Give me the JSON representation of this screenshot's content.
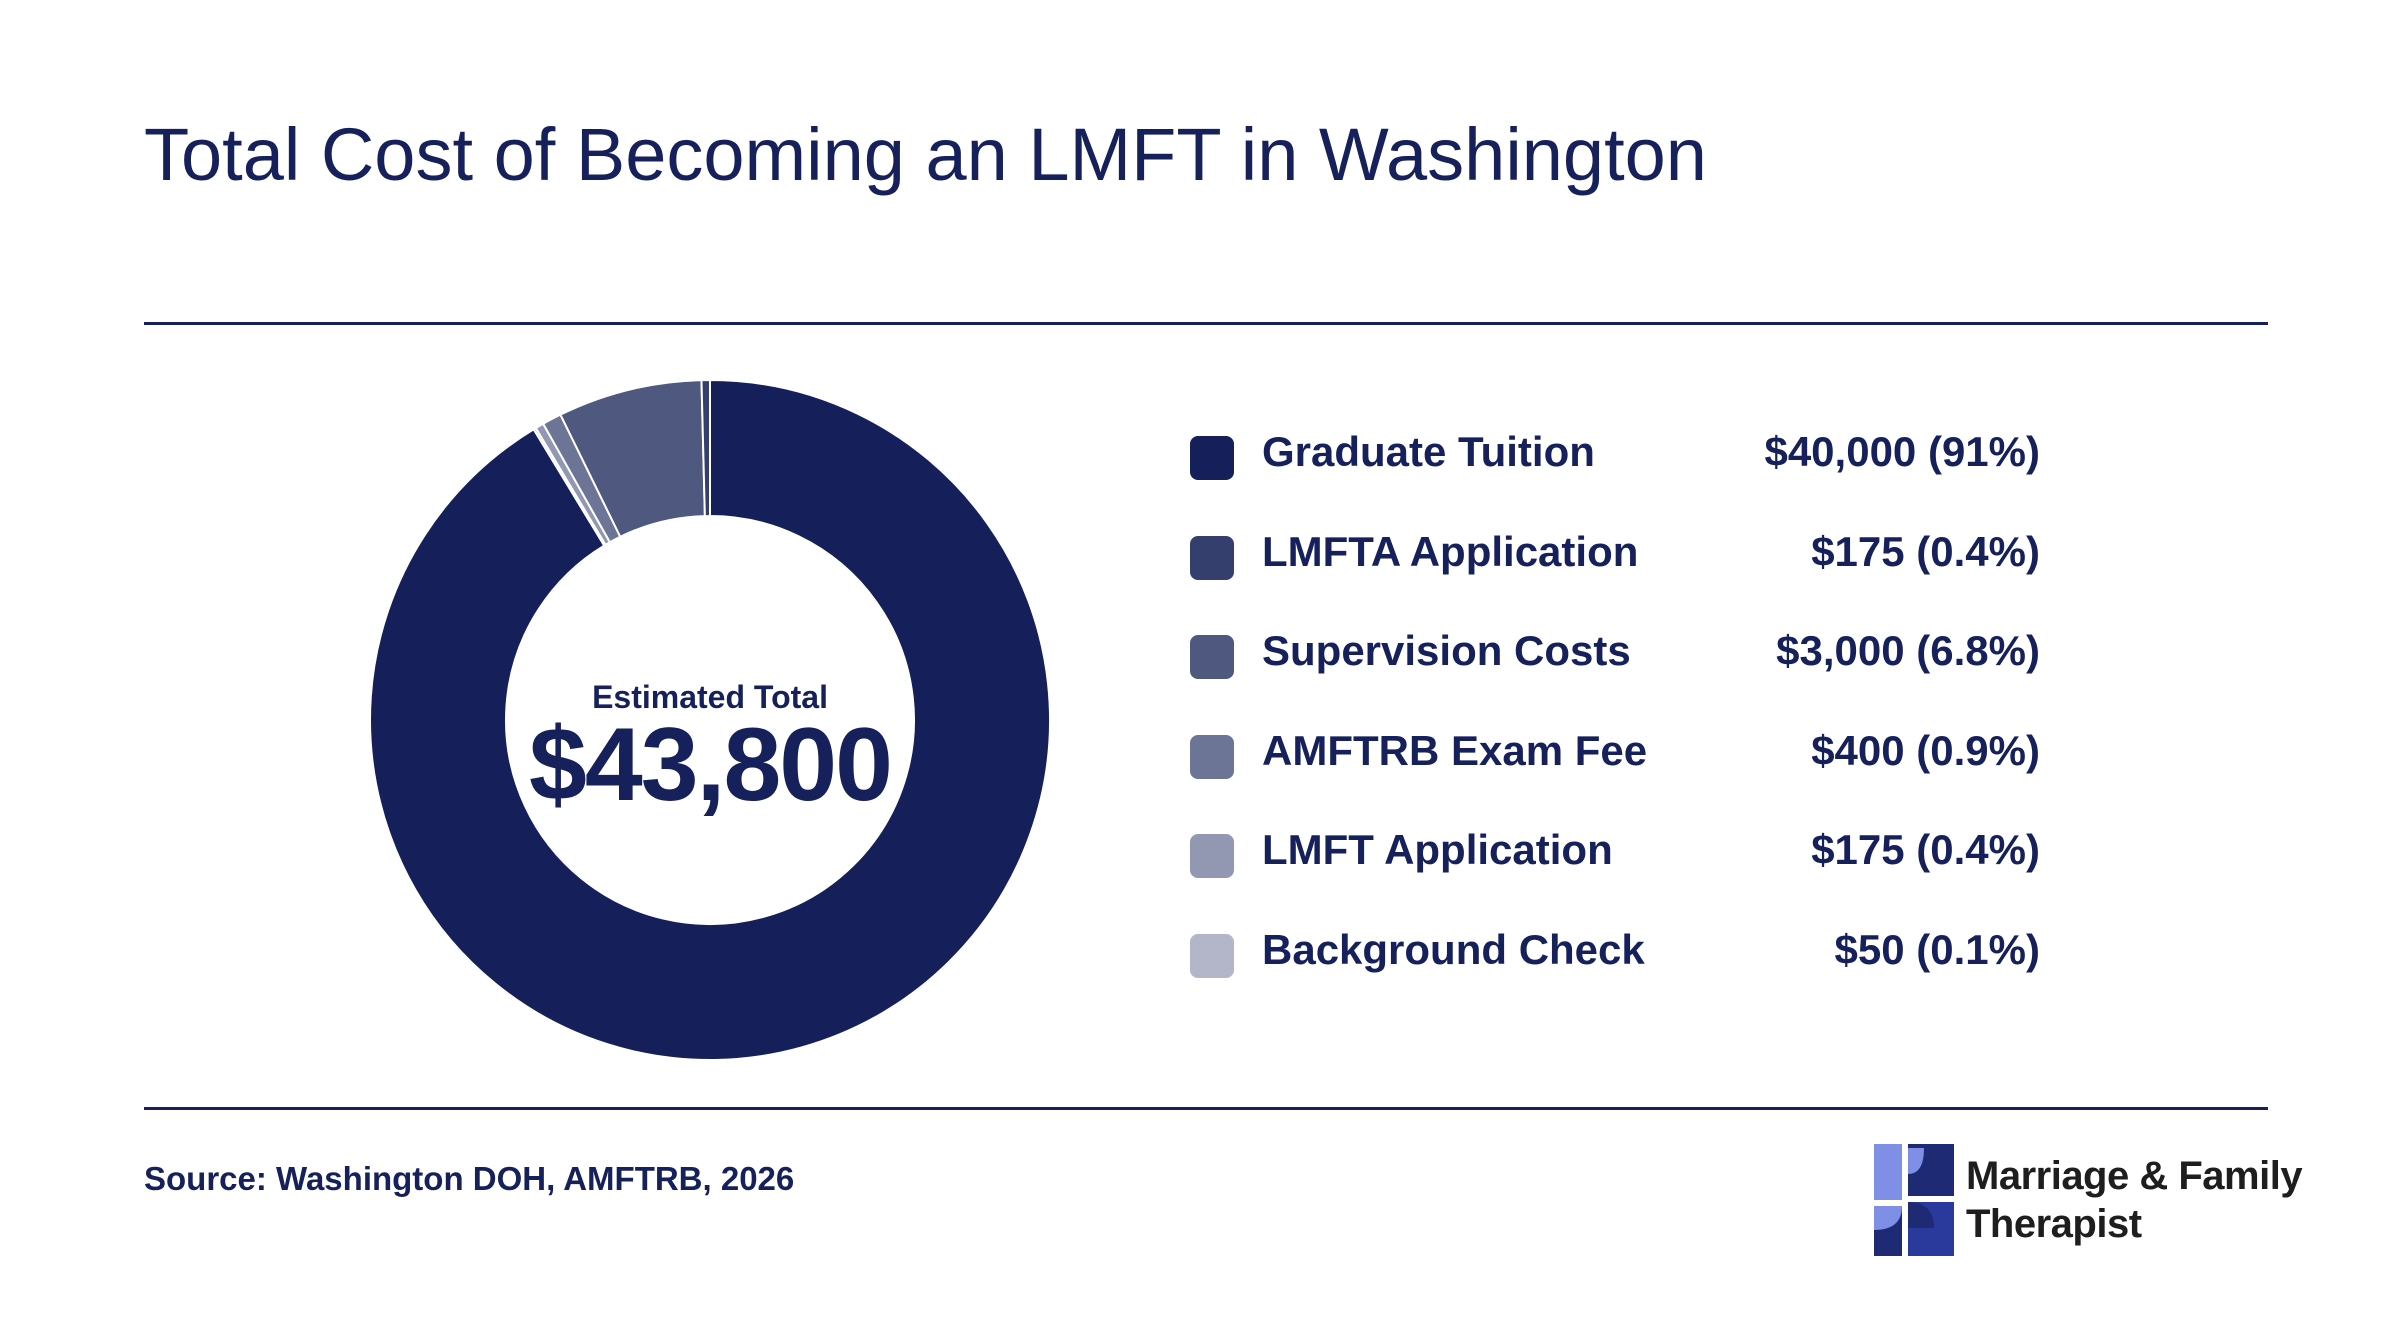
{
  "header": {
    "title": "Total Cost of Becoming an LMFT in Washington"
  },
  "chart_data": {
    "type": "pie",
    "variant": "donut",
    "center": {
      "label": "Estimated Total",
      "value": "$43,800"
    },
    "slices": [
      {
        "label": "Graduate Tuition",
        "value": 40000,
        "display": "$40,000 (91%)",
        "color": "#15205a"
      },
      {
        "label": "LMFTA Application",
        "value": 175,
        "display": "$175 (0.4%)",
        "color": "#353f6e"
      },
      {
        "label": "Supervision Costs",
        "value": 3000,
        "display": "$3,000 (6.8%)",
        "color": "#4f587f"
      },
      {
        "label": "AMFTRB Exam Fee",
        "value": 400,
        "display": "$400 (0.9%)",
        "color": "#6d7596"
      },
      {
        "label": "LMFT Application",
        "value": 175,
        "display": "$175 (0.4%)",
        "color": "#9297b2"
      },
      {
        "label": "Background Check",
        "value": 50,
        "display": "$50 (0.1%)",
        "color": "#b3b6c9"
      }
    ],
    "legend_position": "right"
  },
  "footer": {
    "source": "Source: Washington DOH, AMFTRB, 2026",
    "brand_line1": "Marriage & Family",
    "brand_line2": "Therapist"
  }
}
